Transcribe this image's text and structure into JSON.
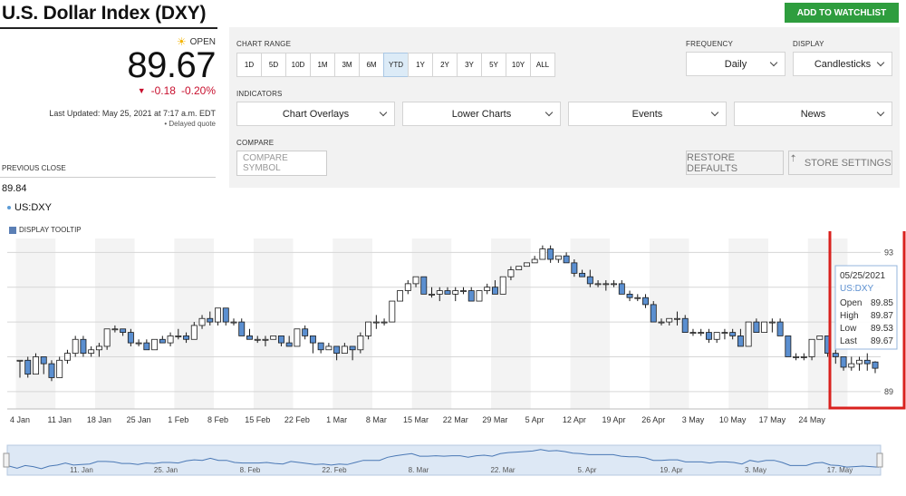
{
  "header": {
    "title": "U.S. Dollar Index (DXY)",
    "watchlist_button": "ADD TO WATCHLIST"
  },
  "quote": {
    "status": "OPEN",
    "price": "89.67",
    "change": "-0.18",
    "change_pct": "-0.20%",
    "last_updated": "Last Updated: May 25, 2021 at 7:17 a.m. EDT",
    "delayed": "Delayed quote",
    "previous_close_label": "PREVIOUS CLOSE",
    "previous_close_value": "89.84",
    "symbol": "US:DXY",
    "down_color": "#c8102e"
  },
  "controls": {
    "chart_range_label": "CHART RANGE",
    "ranges": [
      "1D",
      "5D",
      "10D",
      "1M",
      "3M",
      "6M",
      "YTD",
      "1Y",
      "2Y",
      "3Y",
      "5Y",
      "10Y",
      "ALL"
    ],
    "active_range": "YTD",
    "frequency_label": "FREQUENCY",
    "frequency_value": "Daily",
    "display_label": "DISPLAY",
    "display_value": "Candlesticks",
    "indicators_label": "INDICATORS",
    "indicators": [
      "Chart Overlays",
      "Lower Charts",
      "Events",
      "News"
    ],
    "compare_label": "COMPARE",
    "compare_placeholder": "COMPARE SYMBOL",
    "restore_defaults": "RESTORE DEFAULTS",
    "store_settings": "STORE SETTINGS",
    "display_tooltip": "DISPLAY TOOLTIP"
  },
  "tooltip": {
    "date": "05/25/2021",
    "symbol": "US:DXY",
    "rows": [
      {
        "label": "Open",
        "value": "89.85"
      },
      {
        "label": "High",
        "value": "89.87"
      },
      {
        "label": "Low",
        "value": "89.53"
      },
      {
        "label": "Last",
        "value": "89.67"
      }
    ]
  },
  "chart_data": {
    "type": "candlestick",
    "title": "",
    "xlabel": "",
    "ylabel": "",
    "ylim": [
      88.5,
      93.4
    ],
    "y_ticks": [
      89,
      90,
      91,
      92,
      93
    ],
    "y_tick_labels": [
      "89",
      "",
      "",
      "",
      "93"
    ],
    "x_tick_labels": [
      "4 Jan",
      "11 Jan",
      "18 Jan",
      "25 Jan",
      "1 Feb",
      "8 Feb",
      "15 Feb",
      "22 Feb",
      "1 Mar",
      "8 Mar",
      "15 Mar",
      "22 Mar",
      "29 Mar",
      "5 Apr",
      "12 Apr",
      "19 Apr",
      "26 Apr",
      "3 May",
      "10 May",
      "17 May",
      "24 May"
    ],
    "nav_labels": [
      "11. Jan",
      "25. Jan",
      "8. Feb",
      "22. Feb",
      "8. Mar",
      "22. Mar",
      "5. Apr",
      "19. Apr",
      "3. May",
      "17. May"
    ],
    "candles": [
      [
        89.9,
        89.9,
        89.4,
        89.9
      ],
      [
        89.9,
        90.0,
        89.4,
        89.5
      ],
      [
        89.5,
        90.1,
        89.5,
        90.0
      ],
      [
        90.0,
        90.0,
        89.5,
        89.8
      ],
      [
        89.8,
        89.9,
        89.3,
        89.4
      ],
      [
        89.4,
        90.0,
        89.4,
        89.9
      ],
      [
        89.9,
        90.2,
        89.8,
        90.1
      ],
      [
        90.1,
        90.6,
        90.0,
        90.5
      ],
      [
        90.5,
        90.6,
        90.0,
        90.1
      ],
      [
        90.1,
        90.3,
        90.0,
        90.2
      ],
      [
        90.2,
        90.4,
        90.0,
        90.3
      ],
      [
        90.3,
        90.8,
        90.2,
        90.8
      ],
      [
        90.8,
        90.9,
        90.7,
        90.8
      ],
      [
        90.8,
        90.8,
        90.6,
        90.7
      ],
      [
        90.7,
        90.8,
        90.3,
        90.4
      ],
      [
        90.4,
        90.5,
        90.3,
        90.4
      ],
      [
        90.4,
        90.5,
        90.2,
        90.2
      ],
      [
        90.2,
        90.5,
        90.2,
        90.5
      ],
      [
        90.5,
        90.6,
        90.4,
        90.4
      ],
      [
        90.4,
        90.7,
        90.3,
        90.6
      ],
      [
        90.6,
        90.8,
        90.5,
        90.6
      ],
      [
        90.6,
        90.7,
        90.4,
        90.5
      ],
      [
        90.5,
        91.0,
        90.5,
        90.9
      ],
      [
        90.9,
        91.2,
        90.8,
        91.1
      ],
      [
        91.1,
        91.3,
        90.9,
        91.0
      ],
      [
        91.0,
        91.4,
        90.9,
        91.4
      ],
      [
        91.4,
        91.4,
        90.9,
        91.0
      ],
      [
        91.0,
        91.1,
        90.9,
        91.0
      ],
      [
        91.0,
        91.1,
        90.6,
        90.6
      ],
      [
        90.6,
        90.8,
        90.5,
        90.5
      ],
      [
        90.5,
        90.6,
        90.4,
        90.5
      ],
      [
        90.5,
        90.6,
        90.3,
        90.5
      ],
      [
        90.5,
        90.6,
        90.5,
        90.6
      ],
      [
        90.6,
        90.6,
        90.3,
        90.4
      ],
      [
        90.4,
        90.6,
        90.3,
        90.3
      ],
      [
        90.3,
        90.8,
        90.3,
        90.8
      ],
      [
        90.8,
        90.9,
        90.5,
        90.6
      ],
      [
        90.6,
        90.6,
        90.1,
        90.4
      ],
      [
        90.4,
        90.4,
        90.1,
        90.2
      ],
      [
        90.2,
        90.4,
        90.2,
        90.3
      ],
      [
        90.3,
        90.3,
        89.9,
        90.1
      ],
      [
        90.1,
        90.4,
        90.1,
        90.3
      ],
      [
        90.3,
        90.3,
        89.9,
        90.2
      ],
      [
        90.2,
        90.7,
        90.1,
        90.6
      ],
      [
        90.6,
        91.0,
        90.5,
        91.0
      ],
      [
        91.0,
        91.2,
        90.8,
        91.0
      ],
      [
        91.0,
        91.1,
        90.9,
        91.0
      ],
      [
        91.0,
        91.6,
        91.0,
        91.6
      ],
      [
        91.6,
        91.9,
        91.6,
        91.9
      ],
      [
        91.9,
        92.2,
        91.8,
        92.1
      ],
      [
        92.1,
        92.3,
        92.0,
        92.3
      ],
      [
        92.3,
        92.3,
        91.8,
        91.8
      ],
      [
        91.8,
        92.0,
        91.7,
        91.8
      ],
      [
        91.8,
        92.0,
        91.6,
        91.9
      ],
      [
        91.9,
        92.0,
        91.8,
        91.8
      ],
      [
        91.8,
        92.0,
        91.6,
        91.9
      ],
      [
        91.9,
        92.0,
        91.8,
        91.9
      ],
      [
        91.9,
        92.0,
        91.6,
        91.6
      ],
      [
        91.6,
        91.9,
        91.6,
        91.9
      ],
      [
        91.9,
        92.1,
        91.8,
        92.0
      ],
      [
        92.0,
        92.2,
        91.8,
        91.8
      ],
      [
        91.8,
        92.3,
        91.8,
        92.3
      ],
      [
        92.3,
        92.6,
        92.2,
        92.5
      ],
      [
        92.5,
        92.6,
        92.5,
        92.6
      ],
      [
        92.6,
        92.7,
        92.6,
        92.7
      ],
      [
        92.7,
        92.9,
        92.7,
        92.8
      ],
      [
        92.8,
        93.2,
        92.8,
        93.1
      ],
      [
        93.1,
        93.2,
        92.7,
        92.8
      ],
      [
        92.8,
        92.9,
        92.7,
        92.9
      ],
      [
        92.9,
        93.0,
        92.7,
        92.7
      ],
      [
        92.7,
        92.8,
        92.3,
        92.4
      ],
      [
        92.4,
        92.5,
        92.3,
        92.3
      ],
      [
        92.3,
        92.5,
        92.0,
        92.1
      ],
      [
        92.1,
        92.2,
        92.0,
        92.1
      ],
      [
        92.1,
        92.2,
        91.9,
        92.1
      ],
      [
        92.1,
        92.2,
        92.0,
        92.1
      ],
      [
        92.1,
        92.2,
        91.8,
        91.8
      ],
      [
        91.8,
        91.9,
        91.6,
        91.7
      ],
      [
        91.7,
        91.8,
        91.6,
        91.7
      ],
      [
        91.7,
        91.8,
        91.4,
        91.5
      ],
      [
        91.5,
        91.6,
        91.0,
        91.0
      ],
      [
        91.0,
        91.1,
        90.9,
        91.0
      ],
      [
        91.0,
        91.1,
        90.9,
        91.1
      ],
      [
        91.1,
        91.3,
        90.9,
        91.1
      ],
      [
        91.1,
        91.2,
        90.7,
        90.7
      ],
      [
        90.7,
        90.8,
        90.6,
        90.7
      ],
      [
        90.7,
        90.8,
        90.6,
        90.7
      ],
      [
        90.7,
        90.8,
        90.4,
        90.5
      ],
      [
        90.5,
        90.7,
        90.4,
        90.7
      ],
      [
        90.7,
        90.8,
        90.5,
        90.7
      ],
      [
        90.7,
        90.8,
        90.5,
        90.6
      ],
      [
        90.6,
        90.8,
        90.3,
        90.3
      ],
      [
        90.3,
        91.0,
        90.3,
        91.0
      ],
      [
        91.0,
        91.1,
        90.7,
        90.7
      ],
      [
        90.7,
        91.0,
        90.7,
        91.0
      ],
      [
        91.0,
        91.1,
        90.7,
        91.0
      ],
      [
        91.0,
        91.1,
        90.6,
        90.6
      ],
      [
        90.6,
        90.6,
        90.0,
        90.0
      ],
      [
        90.0,
        90.1,
        89.9,
        90.0
      ],
      [
        90.0,
        90.1,
        89.9,
        90.0
      ],
      [
        90.0,
        90.5,
        89.9,
        90.5
      ],
      [
        90.5,
        90.6,
        90.5,
        90.6
      ],
      [
        90.6,
        90.6,
        90.0,
        90.1
      ],
      [
        90.1,
        90.2,
        89.8,
        90.0
      ],
      [
        90.0,
        90.0,
        89.6,
        89.7
      ],
      [
        89.7,
        90.0,
        89.6,
        89.8
      ],
      [
        89.8,
        90.0,
        89.6,
        89.9
      ],
      [
        89.9,
        90.1,
        89.6,
        89.8
      ],
      [
        89.85,
        89.87,
        89.53,
        89.67
      ]
    ],
    "grid": true,
    "highlight_box_color": "#d9211e"
  }
}
